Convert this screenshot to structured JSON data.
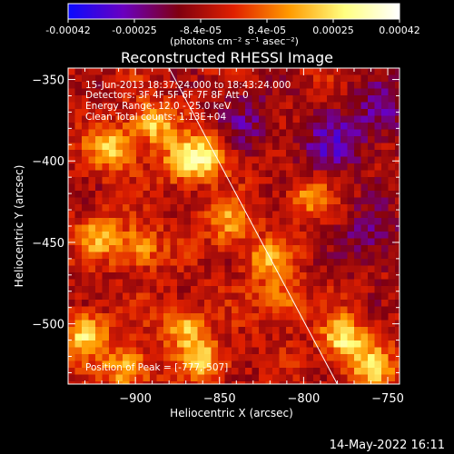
{
  "colorbar": {
    "tick_labels": [
      "-0.00042",
      "-0.00025",
      "-8.4e-05",
      "8.4e-05",
      "0.00025",
      "0.00042"
    ],
    "units": "(photons cm⁻² s⁻¹ asec⁻²)",
    "range": [
      -0.00042,
      0.00042
    ],
    "colors": [
      "#0a0aff",
      "#6a00c0",
      "#800010",
      "#e02000",
      "#ff9a00",
      "#ffff80",
      "#ffffff"
    ]
  },
  "chart_data": {
    "type": "heatmap",
    "title": "Reconstructed RHESSI Image",
    "xlabel": "Heliocentric X (arcsec)",
    "ylabel": "Heliocentric Y (arcsec)",
    "xlim": [
      -940,
      -743
    ],
    "ylim": [
      -537,
      -343
    ],
    "x_ticks": [
      -900,
      -850,
      -800,
      -750
    ],
    "y_ticks": [
      -350,
      -400,
      -450,
      -500
    ],
    "x_tick_labels": [
      "−900",
      "−850",
      "−800",
      "−750"
    ],
    "y_tick_labels": [
      "−350",
      "−400",
      "−450",
      "−500"
    ],
    "limb_line": [
      [
        -880,
        -343
      ],
      [
        -780,
        -537
      ]
    ],
    "annotations": [
      "15-Jun-2013 18:37:24.000 to 18:43:24.000",
      "Detectors: 3F 4F 5F 6F 7F 8F  Att 0",
      "Energy Range: 12.0 - 25.0 keV",
      "Clean    Total counts: 1.13E+04"
    ],
    "peak_label": "Position of Peak = [-777,-507]",
    "bright_sources": [
      {
        "x": -915,
        "y": -392,
        "level": 0.9
      },
      {
        "x": -890,
        "y": -377,
        "level": 0.85
      },
      {
        "x": -870,
        "y": -400,
        "level": 0.95
      },
      {
        "x": -855,
        "y": -395,
        "level": 0.7
      },
      {
        "x": -920,
        "y": -445,
        "level": 0.7
      },
      {
        "x": -897,
        "y": -452,
        "level": 0.6
      },
      {
        "x": -845,
        "y": -437,
        "level": 0.65
      },
      {
        "x": -822,
        "y": -460,
        "level": 0.65
      },
      {
        "x": -930,
        "y": -505,
        "level": 0.95
      },
      {
        "x": -905,
        "y": -525,
        "level": 0.85
      },
      {
        "x": -872,
        "y": -500,
        "level": 0.8
      },
      {
        "x": -860,
        "y": -520,
        "level": 0.75
      },
      {
        "x": -815,
        "y": -485,
        "level": 0.6
      },
      {
        "x": -777,
        "y": -507,
        "level": 1.0
      },
      {
        "x": -760,
        "y": -525,
        "level": 0.8
      },
      {
        "x": -798,
        "y": -422,
        "level": 0.55
      }
    ],
    "dim_regions": [
      {
        "x": -785,
        "y": -390,
        "level": -0.4
      },
      {
        "x": -760,
        "y": -445,
        "level": -0.35
      },
      {
        "x": -835,
        "y": -375,
        "level": -0.3
      },
      {
        "x": -755,
        "y": -370,
        "level": -0.35
      }
    ]
  },
  "footer": {
    "date": "14-May-2022 16:11"
  }
}
